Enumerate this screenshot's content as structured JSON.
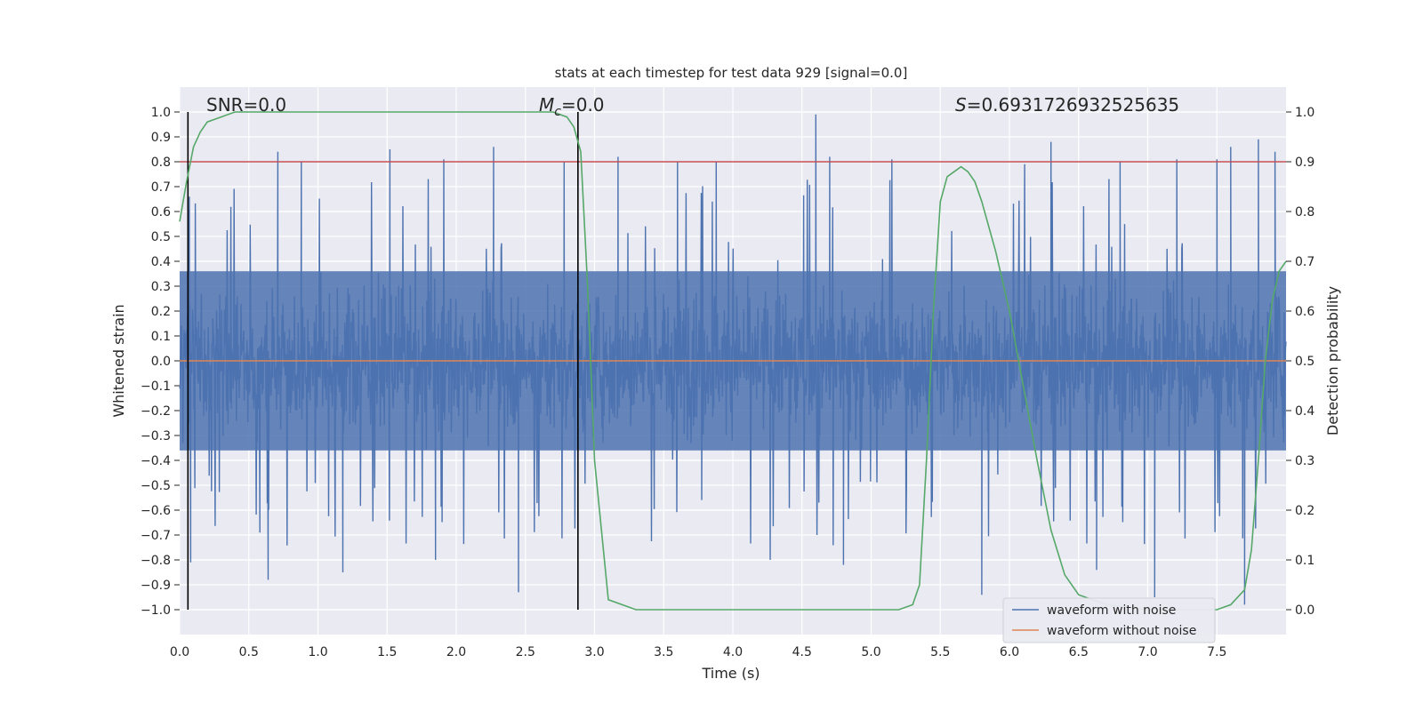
{
  "chart_data": {
    "type": "line",
    "title": "stats at each timestep for test data 929 [signal=0.0]",
    "xlabel": "Time (s)",
    "ylabel": "Whitened strain",
    "y2label": "Detection probability",
    "xlim": [
      0.0,
      8.0
    ],
    "ylim": [
      -1.1,
      1.1
    ],
    "y2lim": [
      -0.05,
      1.05
    ],
    "x_ticks": [
      0.0,
      0.5,
      1.0,
      1.5,
      2.0,
      2.5,
      3.0,
      3.5,
      4.0,
      4.5,
      5.0,
      5.5,
      6.0,
      6.5,
      7.0,
      7.5
    ],
    "x_tick_labels": [
      "0.0",
      "0.5",
      "1.0",
      "1.5",
      "2.0",
      "2.5",
      "3.0",
      "3.5",
      "4.0",
      "4.5",
      "5.0",
      "5.5",
      "6.0",
      "6.5",
      "7.0",
      "7.5"
    ],
    "y_ticks": [
      1.0,
      0.9,
      0.8,
      0.7,
      0.6,
      0.5,
      0.4,
      0.3,
      0.2,
      0.1,
      0.0,
      -0.1,
      -0.2,
      -0.3,
      -0.4,
      -0.5,
      -0.6,
      -0.7,
      -0.8,
      -0.9,
      -1.0
    ],
    "y_tick_labels": [
      "1.0",
      "0.9",
      "0.8",
      "0.7",
      "0.6",
      "0.5",
      "0.4",
      "0.3",
      "0.2",
      "0.1",
      "0.0",
      "−0.1",
      "−0.2",
      "−0.3",
      "−0.4",
      "−0.5",
      "−0.6",
      "−0.7",
      "−0.8",
      "−0.9",
      "−1.0"
    ],
    "y2_ticks": [
      1.0,
      0.9,
      0.8,
      0.7,
      0.6,
      0.5,
      0.4,
      0.3,
      0.2,
      0.1,
      0.0
    ],
    "y2_tick_labels": [
      "1.0",
      "0.9",
      "0.8",
      "0.7",
      "0.6",
      "0.5",
      "0.4",
      "0.3",
      "0.2",
      "0.1",
      "0.0"
    ],
    "annotations": {
      "snr": "SNR=0.0",
      "mc_symbol": "M",
      "mc_sub": "c",
      "mc_value": "=0.0",
      "s_symbol": "S",
      "s_value": "=0.6931726932525635"
    },
    "threshold_line": {
      "y2": 0.9,
      "color": "#c44e52"
    },
    "vertical_lines_x": [
      0.06,
      2.88
    ],
    "series": [
      {
        "name": "waveform with noise",
        "color": "#4c72b0",
        "note": "dense noise, typical amplitude within ±0.4; selected spikes listed as [x, y]",
        "typical_range": [
          -0.4,
          0.4
        ],
        "spikes": [
          [
            0.07,
            0.66
          ],
          [
            0.08,
            -0.81
          ],
          [
            0.58,
            -0.69
          ],
          [
            0.64,
            -0.88
          ],
          [
            0.71,
            0.84
          ],
          [
            0.88,
            0.8
          ],
          [
            1.18,
            -0.85
          ],
          [
            1.52,
            0.85
          ],
          [
            1.85,
            -0.8
          ],
          [
            1.91,
            0.81
          ],
          [
            2.27,
            0.86
          ],
          [
            2.45,
            -0.93
          ],
          [
            2.78,
            0.8
          ],
          [
            3.17,
            0.82
          ],
          [
            3.6,
            0.8
          ],
          [
            3.88,
            0.8
          ],
          [
            4.27,
            -0.8
          ],
          [
            4.6,
            0.99
          ],
          [
            4.7,
            0.82
          ],
          [
            4.8,
            -0.82
          ],
          [
            5.15,
            0.81
          ],
          [
            5.8,
            -0.94
          ],
          [
            6.11,
            0.79
          ],
          [
            6.3,
            0.88
          ],
          [
            6.63,
            -0.84
          ],
          [
            6.8,
            0.8
          ],
          [
            7.05,
            -0.95
          ],
          [
            7.21,
            0.81
          ],
          [
            7.5,
            0.81
          ],
          [
            7.6,
            0.86
          ],
          [
            7.7,
            -0.98
          ],
          [
            7.8,
            0.89
          ],
          [
            7.92,
            0.84
          ]
        ]
      },
      {
        "name": "waveform without noise",
        "color": "#dd8452",
        "x": [
          0.0,
          8.0
        ],
        "y": [
          0.0,
          0.0
        ]
      },
      {
        "name": "detection probability",
        "color": "#55a868",
        "axis": "y2",
        "x": [
          0.0,
          0.05,
          0.1,
          0.15,
          0.2,
          0.3,
          0.4,
          0.5,
          0.7,
          1.0,
          1.5,
          2.0,
          2.5,
          2.7,
          2.8,
          2.85,
          2.9,
          2.95,
          3.0,
          3.1,
          3.3,
          3.6,
          4.0,
          4.5,
          5.0,
          5.2,
          5.3,
          5.35,
          5.4,
          5.45,
          5.5,
          5.55,
          5.6,
          5.65,
          5.7,
          5.75,
          5.8,
          5.9,
          6.0,
          6.1,
          6.2,
          6.3,
          6.4,
          6.5,
          6.7,
          7.0,
          7.3,
          7.5,
          7.6,
          7.7,
          7.75,
          7.8,
          7.85,
          7.9,
          7.95,
          8.0
        ],
        "y": [
          0.78,
          0.86,
          0.93,
          0.96,
          0.98,
          0.99,
          1.0,
          1.0,
          1.0,
          1.0,
          1.0,
          1.0,
          1.0,
          1.0,
          0.99,
          0.97,
          0.92,
          0.65,
          0.3,
          0.02,
          0.0,
          0.0,
          0.0,
          0.0,
          0.0,
          0.0,
          0.01,
          0.05,
          0.3,
          0.6,
          0.82,
          0.87,
          0.88,
          0.89,
          0.88,
          0.86,
          0.82,
          0.72,
          0.6,
          0.45,
          0.3,
          0.16,
          0.07,
          0.03,
          0.01,
          0.0,
          0.0,
          0.0,
          0.01,
          0.04,
          0.12,
          0.3,
          0.5,
          0.62,
          0.68,
          0.7
        ]
      }
    ],
    "legend": {
      "position": "bottom-right",
      "entries": [
        {
          "label": "waveform with noise",
          "color": "#4c72b0"
        },
        {
          "label": "waveform without noise",
          "color": "#dd8452"
        }
      ]
    },
    "style": {
      "plot_bg": "#eaeaf2",
      "grid": "#ffffff"
    }
  }
}
